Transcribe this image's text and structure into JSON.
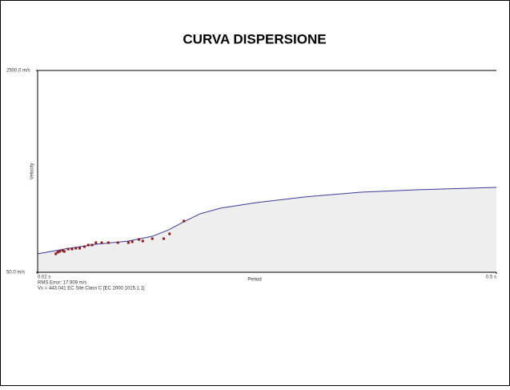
{
  "chart_data": {
    "type": "line",
    "title": "CURVA DISPERSIONE",
    "x_label": "Period",
    "y_label": "Velocity",
    "xlim": [
      0.02,
      0.5
    ],
    "ylim": [
      50,
      2500
    ],
    "xticks": [
      {
        "value": 0.02,
        "label": "0.02 s"
      },
      {
        "value": 0.5,
        "label": "0.5 s"
      }
    ],
    "yticks": [
      {
        "value": 2500,
        "label": "2500.0 m/s"
      },
      {
        "value": 50,
        "label": "50.0 m/s"
      }
    ],
    "x": [
      0.02,
      0.048,
      0.081,
      0.115,
      0.14,
      0.157,
      0.173,
      0.19,
      0.211,
      0.249,
      0.299,
      0.358,
      0.416,
      0.5
    ],
    "values": [
      274,
      332,
      390,
      429,
      487,
      565,
      663,
      760,
      828,
      896,
      964,
      1022,
      1051,
      1081
    ],
    "color": "#3a3a9a",
    "fill": "#eeeeee",
    "points": {
      "color": "#8b1a1a",
      "x": [
        0.039,
        0.041,
        0.043,
        0.046,
        0.048,
        0.052,
        0.056,
        0.06,
        0.064,
        0.069,
        0.073,
        0.077,
        0.081,
        0.087,
        0.094,
        0.104,
        0.115,
        0.119,
        0.126,
        0.13,
        0.14,
        0.152,
        0.158,
        0.173
      ],
      "values": [
        274,
        293,
        303,
        313,
        303,
        332,
        332,
        342,
        342,
        361,
        381,
        381,
        410,
        410,
        410,
        410,
        410,
        420,
        449,
        429,
        458,
        458,
        517,
        672
      ]
    },
    "annotations": [
      "RMS Error: 17.909 m/s",
      "Vs = 443.041    EC Site Class C [EC 2000 1015.1.1]"
    ]
  }
}
